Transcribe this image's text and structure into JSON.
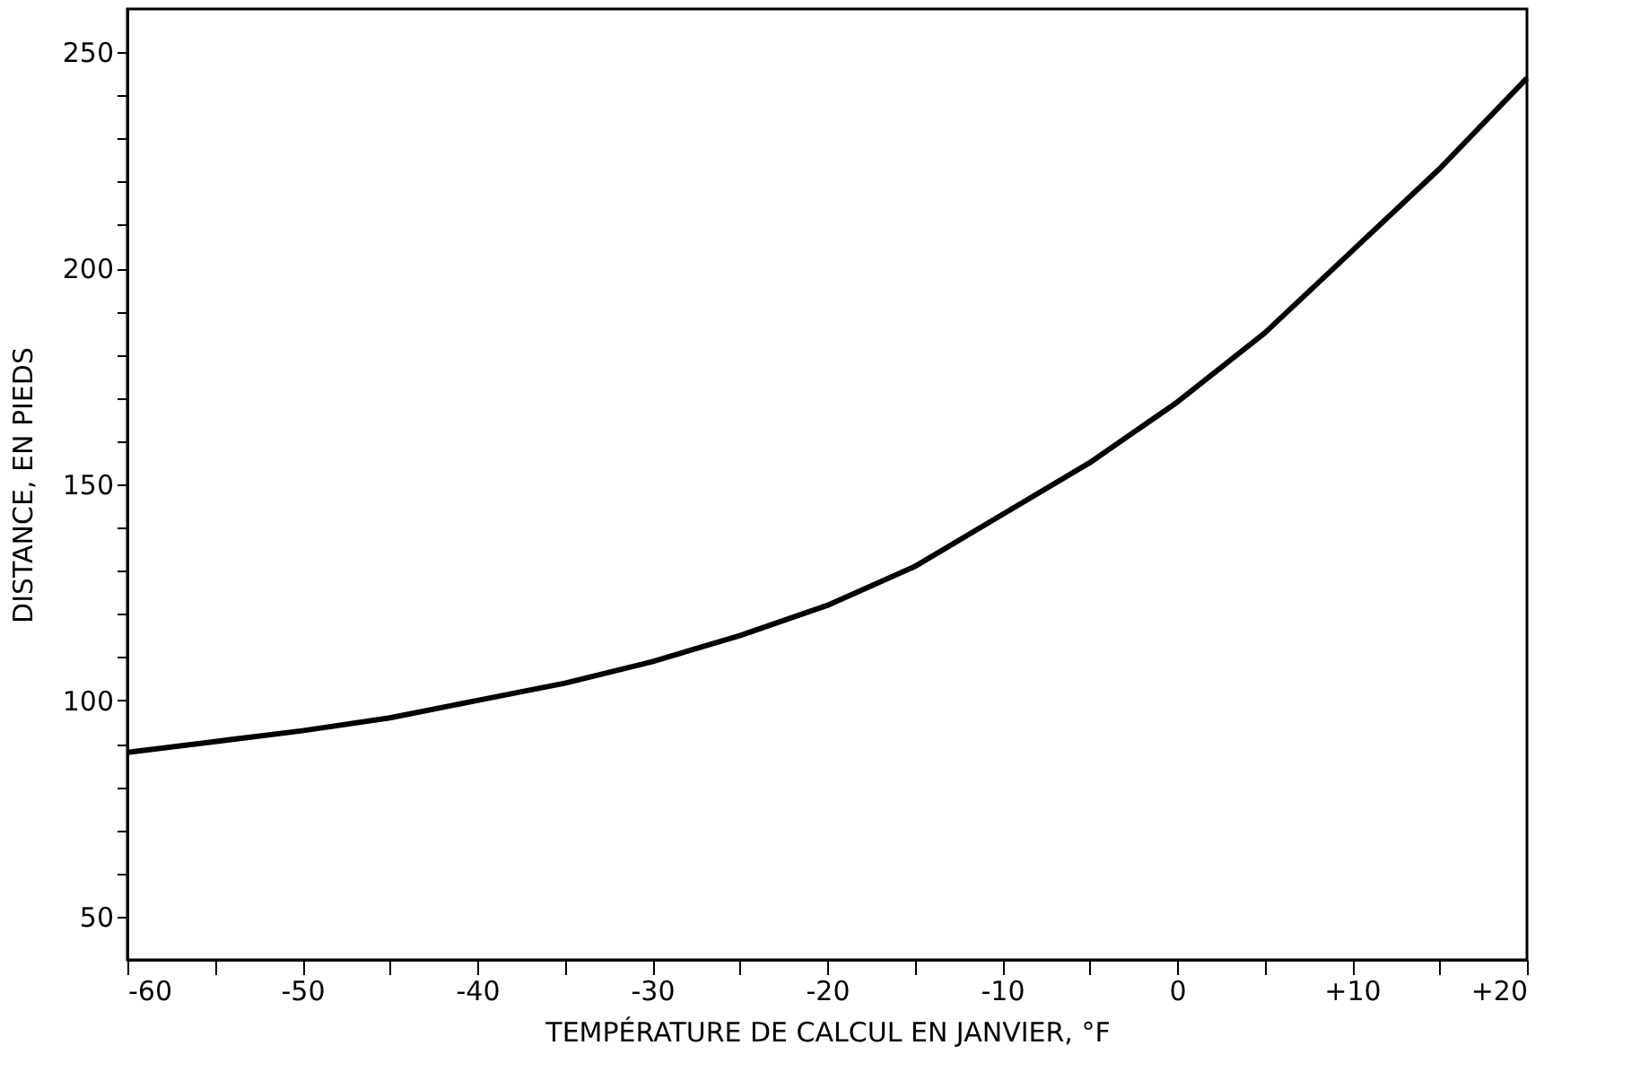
{
  "chart_data": {
    "type": "line",
    "xlabel": "TEMPÉRATURE DE CALCUL EN JANVIER, °F",
    "ylabel": "DISTANCE, EN PIEDS",
    "x": [
      -60,
      -55,
      -50,
      -45,
      -40,
      -35,
      -30,
      -25,
      -20,
      -15,
      -10,
      -5,
      0,
      5,
      10,
      15,
      20
    ],
    "series": [
      {
        "color": "#000000",
        "values": [
          88,
          90.5,
          93,
          96,
          100,
          104,
          109,
          115,
          122,
          131,
          143,
          155,
          169,
          185,
          204,
          223,
          244
        ]
      }
    ],
    "xlim": [
      -60,
      20
    ],
    "xticks": [
      -60,
      {
        "value": -55,
        "label": null
      },
      -50,
      {
        "value": -45,
        "label": null
      },
      -40,
      {
        "value": -35,
        "label": null
      },
      -30,
      {
        "value": -25,
        "label": null
      },
      -20,
      {
        "value": -15,
        "label": null
      },
      -10,
      {
        "value": -5,
        "label": null
      },
      0,
      {
        "value": 5,
        "label": null
      },
      {
        "value": 10,
        "label": "+10"
      },
      {
        "value": 15,
        "label": null
      },
      {
        "value": 20,
        "label": "+20"
      }
    ],
    "ylim": [
      40,
      260
    ],
    "yticks": [
      50,
      {
        "value": 60,
        "label": null
      },
      {
        "value": 70,
        "label": null
      },
      {
        "value": 80,
        "label": null
      },
      {
        "value": 90,
        "label": null
      },
      100,
      {
        "value": 110,
        "label": null
      },
      {
        "value": 120,
        "label": null
      },
      {
        "value": 130,
        "label": null
      },
      {
        "value": 140,
        "label": null
      },
      150,
      {
        "value": 160,
        "label": null
      },
      {
        "value": 170,
        "label": null
      },
      {
        "value": 180,
        "label": null
      },
      {
        "value": 190,
        "label": null
      },
      200,
      {
        "value": 210,
        "label": null
      },
      {
        "value": 220,
        "label": null
      },
      {
        "value": 230,
        "label": null
      },
      {
        "value": 240,
        "label": null
      },
      250
    ],
    "grid": false,
    "legend": false,
    "marker": "none",
    "line_style": "solid"
  }
}
